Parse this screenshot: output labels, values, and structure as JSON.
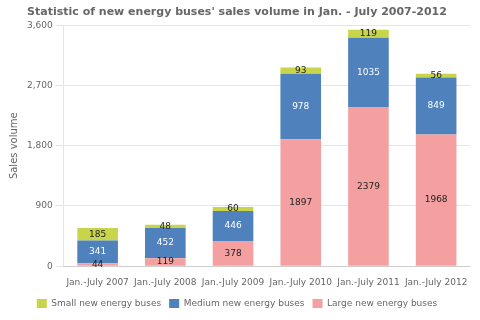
{
  "chart_data": {
    "type": "bar",
    "stacked": true,
    "title": "Statistic of new energy buses' sales volume in Jan. - July 2007-2012",
    "ylabel": "Sales volume",
    "categories": [
      "Jan.-July 2007",
      "Jan.-July 2008",
      "Jan.-July 2009",
      "Jan.-July 2010",
      "Jan.-July 2011",
      "Jan.-July 2012"
    ],
    "series": [
      {
        "name": "Large new energy buses",
        "color": "#f4a0a0",
        "values": [
          44,
          119,
          378,
          1897,
          2379,
          1968
        ]
      },
      {
        "name": "Medium new energy buses",
        "color": "#4f81bd",
        "values": [
          341,
          452,
          446,
          978,
          1035,
          849
        ]
      },
      {
        "name": "Small new energy buses",
        "color": "#c8d44a",
        "values": [
          185,
          48,
          60,
          93,
          119,
          56
        ]
      }
    ],
    "ylim": [
      0,
      3600
    ],
    "yticks": [
      0,
      900,
      1800,
      2700,
      3600
    ],
    "grid": true,
    "legend": "bottom",
    "data_labels": true
  }
}
